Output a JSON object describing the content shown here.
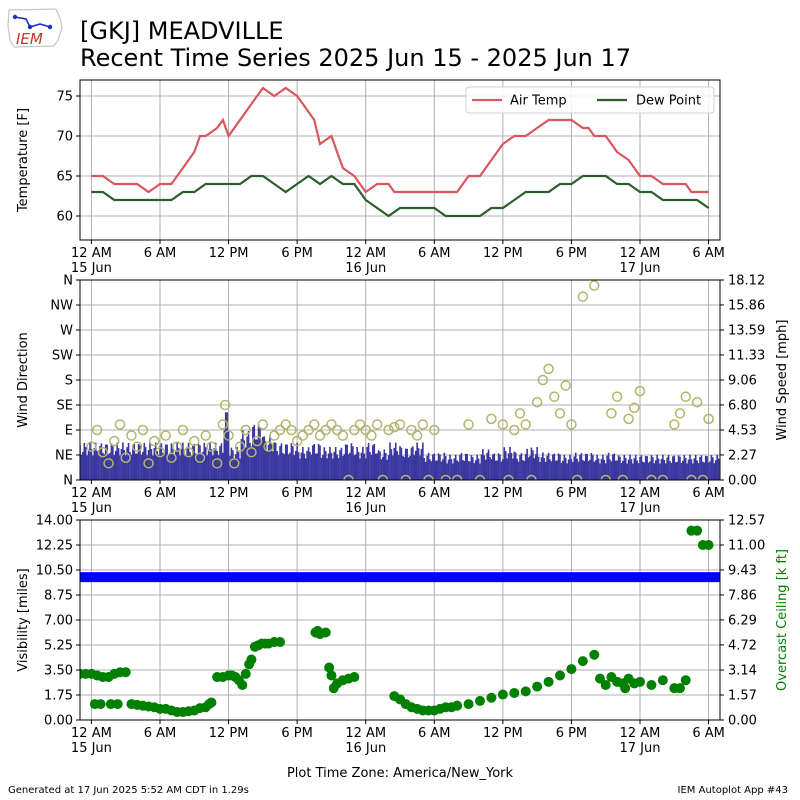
{
  "header": {
    "title_line1": "[GKJ] MEADVILLE",
    "title_line2": "Recent Time Series 2025 Jun 15 - 2025 Jun 17",
    "logo_text": "IEM"
  },
  "footer": {
    "generated": "Generated at 17 Jun 2025 5:52 AM CDT in 1.29s",
    "app": "IEM Autoplot App #43",
    "timezone_label": "Plot Time Zone: America/New_York"
  },
  "colors": {
    "air_temp": "#d9575e",
    "dew_point": "#2e5e2e",
    "wind_bar": "#3a37a0",
    "wind_dir_marker": "#b3b56a",
    "visibility": "#0000ff",
    "ceiling": "#008000",
    "grid": "#b0b0b0"
  },
  "x_axis": {
    "ticks": [
      {
        "hour": 0,
        "label": "12 AM",
        "sub": "15 Jun"
      },
      {
        "hour": 6,
        "label": "6 AM",
        "sub": ""
      },
      {
        "hour": 12,
        "label": "12 PM",
        "sub": ""
      },
      {
        "hour": 18,
        "label": "6 PM",
        "sub": ""
      },
      {
        "hour": 24,
        "label": "12 AM",
        "sub": "16 Jun"
      },
      {
        "hour": 30,
        "label": "6 AM",
        "sub": ""
      },
      {
        "hour": 36,
        "label": "12 PM",
        "sub": ""
      },
      {
        "hour": 42,
        "label": "6 PM",
        "sub": ""
      },
      {
        "hour": 48,
        "label": "12 AM",
        "sub": "17 Jun"
      },
      {
        "hour": 54,
        "label": "6 AM",
        "sub": ""
      }
    ],
    "range": [
      -1,
      55
    ]
  },
  "chart_data": [
    {
      "type": "line",
      "ylabel": "Temperature [F]",
      "ylim": [
        57,
        77
      ],
      "yticks": [
        60,
        65,
        70,
        75
      ],
      "grid": true,
      "legend": "top-right",
      "series": [
        {
          "name": "Air Temp",
          "x": [
            0,
            1,
            2,
            3,
            4,
            5,
            6,
            7,
            8,
            9,
            9.5,
            10,
            11,
            11.5,
            12,
            12.5,
            13,
            14,
            15,
            16,
            17,
            18,
            18.5,
            19,
            19.5,
            20,
            21,
            21.5,
            22,
            23,
            24,
            25,
            26,
            26.5,
            27,
            28,
            29,
            30,
            31,
            32,
            33,
            34,
            35,
            36,
            37,
            38,
            39,
            40,
            41,
            42,
            43,
            43.5,
            44,
            45,
            46,
            47,
            48,
            49,
            50,
            51,
            52,
            52.5,
            53,
            54
          ],
          "y": [
            65,
            65,
            64,
            64,
            64,
            63,
            64,
            64,
            66,
            68,
            70,
            70,
            71,
            72,
            70,
            71,
            72,
            74,
            76,
            75,
            76,
            75,
            74,
            73,
            72,
            69,
            70,
            68,
            66,
            65,
            63,
            64,
            64,
            63,
            63,
            63,
            63,
            63,
            63,
            63,
            65,
            65,
            67,
            69,
            70,
            70,
            71,
            72,
            72,
            72,
            71,
            71,
            70,
            70,
            68,
            67,
            65,
            65,
            64,
            64,
            64,
            63,
            63,
            63
          ]
        },
        {
          "name": "Dew Point",
          "x": [
            0,
            1,
            2,
            3,
            4,
            5,
            6,
            7,
            8,
            9,
            10,
            11,
            12,
            13,
            14,
            15,
            16,
            17,
            18,
            19,
            20,
            21,
            22,
            23,
            24,
            25,
            26,
            27,
            28,
            29,
            30,
            31,
            32,
            33,
            34,
            35,
            36,
            37,
            38,
            39,
            40,
            41,
            42,
            43,
            44,
            45,
            46,
            47,
            48,
            49,
            50,
            51,
            52,
            53,
            54
          ],
          "y": [
            63,
            63,
            62,
            62,
            62,
            62,
            62,
            62,
            63,
            63,
            64,
            64,
            64,
            64,
            65,
            65,
            64,
            63,
            64,
            65,
            64,
            65,
            64,
            64,
            62,
            61,
            60,
            61,
            61,
            61,
            61,
            60,
            60,
            60,
            60,
            61,
            61,
            62,
            63,
            63,
            63,
            64,
            64,
            65,
            65,
            65,
            64,
            64,
            63,
            63,
            62,
            62,
            62,
            62,
            61
          ]
        }
      ]
    },
    {
      "type": "bar",
      "ylabel": "Wind Direction",
      "y2label": "Wind Speed [mph]",
      "ylim": [
        0,
        360
      ],
      "yticks": [
        0,
        45,
        90,
        135,
        180,
        225,
        270,
        315,
        360
      ],
      "ytick_labels": [
        "N",
        "NE",
        "E",
        "SE",
        "S",
        "SW",
        "W",
        "NW",
        "N"
      ],
      "y2lim": [
        0,
        18.12
      ],
      "y2ticks": [
        0.0,
        2.27,
        4.53,
        6.8,
        9.06,
        11.33,
        13.59,
        15.86,
        18.12
      ],
      "y2tick_labels": [
        "0.00",
        "2.27",
        "4.53",
        "6.80",
        "9.06",
        "11.33",
        "13.59",
        "15.86",
        "18.12"
      ],
      "grid": true,
      "wind_speed_envelope": {
        "x": [
          0,
          1,
          2,
          3,
          4,
          5,
          6,
          7,
          8,
          9,
          10,
          11,
          11.5,
          12,
          13,
          14,
          15,
          16,
          17,
          18,
          19,
          20,
          21,
          22,
          23,
          24,
          25,
          26,
          27,
          28,
          29,
          30,
          31,
          32,
          33,
          34,
          35,
          36,
          37,
          38,
          39,
          40,
          41,
          42,
          43,
          44,
          45,
          46,
          47,
          48,
          49,
          50,
          51,
          52,
          53,
          54
        ],
        "y": [
          3.4,
          3.4,
          3.4,
          3.4,
          3.4,
          3.4,
          3.4,
          3.4,
          3.4,
          3.4,
          3.4,
          3.4,
          6.5,
          3.0,
          4.5,
          5.2,
          4.0,
          3.4,
          3.4,
          3.0,
          3.4,
          3.0,
          3.0,
          3.4,
          3.0,
          3.4,
          2.8,
          3.4,
          3.0,
          3.4,
          2.5,
          2.5,
          2.3,
          2.5,
          2.3,
          2.8,
          2.5,
          3.0,
          2.5,
          3.0,
          2.5,
          2.5,
          2.3,
          2.5,
          2.5,
          2.3,
          2.5,
          2.3,
          2.3,
          2.3,
          2.3,
          2.3,
          2.3,
          2.3,
          2.3,
          2.3
        ]
      },
      "wind_direction": {
        "x": [
          0,
          0.5,
          1,
          1.5,
          2,
          2.5,
          3,
          3.5,
          4,
          4.5,
          5,
          5.5,
          6,
          6.5,
          7,
          7.5,
          8,
          8.5,
          9,
          9.5,
          10,
          10.5,
          11,
          11.5,
          11.7,
          12,
          12.5,
          13,
          13.5,
          14,
          14.5,
          15,
          15.5,
          16,
          16.5,
          17,
          17.5,
          18,
          18.5,
          19,
          19.5,
          20,
          20.5,
          21,
          21.5,
          22,
          22.5,
          23,
          23.5,
          24,
          24.5,
          25,
          25.5,
          26,
          26.5,
          27,
          27.5,
          28,
          28.5,
          29,
          29.5,
          30,
          31,
          32,
          33,
          34,
          35,
          36,
          36.5,
          37,
          37.5,
          38,
          38.5,
          39,
          39.5,
          40,
          40.5,
          41,
          41.5,
          42,
          42.5,
          43,
          44,
          45,
          45.5,
          46,
          46.5,
          47,
          47.5,
          48,
          49,
          50,
          51,
          51.5,
          52,
          52.5,
          53,
          53.5,
          54
        ],
        "y": [
          60,
          90,
          50,
          30,
          70,
          100,
          40,
          80,
          60,
          90,
          30,
          70,
          50,
          80,
          40,
          60,
          90,
          50,
          70,
          40,
          80,
          60,
          30,
          100,
          135,
          80,
          30,
          60,
          90,
          50,
          70,
          100,
          60,
          80,
          90,
          100,
          90,
          70,
          80,
          90,
          100,
          80,
          90,
          100,
          90,
          80,
          0,
          90,
          100,
          90,
          80,
          100,
          0,
          90,
          95,
          100,
          0,
          90,
          80,
          100,
          0,
          90,
          0,
          0,
          100,
          0,
          110,
          100,
          0,
          90,
          120,
          100,
          0,
          140,
          180,
          200,
          150,
          120,
          170,
          100,
          0,
          330,
          350,
          0,
          120,
          150,
          0,
          110,
          130,
          160,
          0,
          0,
          100,
          120,
          150,
          0,
          140,
          0,
          110
        ]
      }
    },
    {
      "type": "scatter",
      "ylabel": "Visibility [miles]",
      "y2label": "Overcast Ceiling [k ft]",
      "ylim": [
        0,
        14
      ],
      "yticks": [
        0.0,
        1.75,
        3.5,
        5.25,
        7.0,
        8.75,
        10.5,
        12.25,
        14.0
      ],
      "ytick_labels": [
        "0.00",
        "1.75",
        "3.50",
        "5.25",
        "7.00",
        "8.75",
        "10.50",
        "12.25",
        "14.00"
      ],
      "y2lim": [
        0,
        12.57
      ],
      "y2ticks": [
        0.0,
        1.57,
        3.14,
        4.72,
        6.29,
        7.86,
        9.43,
        11.0,
        12.57
      ],
      "y2tick_labels": [
        "0.00",
        "1.57",
        "3.14",
        "4.72",
        "6.29",
        "7.86",
        "9.43",
        "11.00",
        "12.57"
      ],
      "grid": true,
      "visibility": {
        "x_start": -1,
        "x_end": 55,
        "value": 10
      },
      "ceiling": {
        "x": [
          -1,
          -0.5,
          0,
          0.5,
          1,
          1.5,
          2,
          2.5,
          3,
          0.3,
          0.8,
          1.7,
          2.3,
          3.5,
          4,
          4.5,
          5,
          5.5,
          6,
          6.5,
          7,
          7.5,
          8,
          8.5,
          9,
          9.5,
          10,
          10.3,
          10.5,
          11,
          11.5,
          12,
          12.3,
          12.6,
          12.9,
          13.2,
          13.5,
          13.8,
          14,
          14.3,
          14.6,
          14.9,
          15.2,
          15.5,
          16,
          16.5,
          19.6,
          19.8,
          20,
          20.5,
          20.8,
          21,
          21.2,
          21.5,
          22,
          22.5,
          23,
          26.5,
          27,
          27.5,
          28,
          28.5,
          29,
          29.5,
          30,
          30.5,
          31,
          31.5,
          32,
          33,
          34,
          35,
          36,
          37,
          38,
          39,
          40,
          41,
          42,
          43,
          44,
          44.5,
          45,
          45.5,
          46,
          46.5,
          46.7,
          47,
          47.5,
          48,
          49,
          50,
          51,
          51.5,
          52,
          52.5,
          53,
          53.5,
          54
        ],
        "y": [
          2.9,
          2.9,
          2.9,
          2.8,
          2.7,
          2.7,
          2.9,
          3.0,
          3.0,
          1.0,
          1.0,
          1.0,
          1.0,
          1.0,
          0.95,
          0.9,
          0.85,
          0.8,
          0.7,
          0.7,
          0.6,
          0.5,
          0.5,
          0.55,
          0.6,
          0.75,
          0.8,
          1.0,
          1.1,
          2.7,
          2.7,
          2.8,
          2.8,
          2.7,
          2.5,
          2.2,
          2.9,
          3.5,
          3.8,
          4.6,
          4.7,
          4.8,
          4.8,
          4.8,
          4.9,
          4.9,
          5.5,
          5.6,
          5.4,
          5.5,
          3.3,
          2.8,
          2.0,
          2.3,
          2.5,
          2.6,
          2.7,
          1.5,
          1.3,
          1.0,
          0.8,
          0.7,
          0.6,
          0.6,
          0.6,
          0.7,
          0.8,
          0.8,
          0.9,
          1.0,
          1.2,
          1.4,
          1.6,
          1.7,
          1.8,
          2.1,
          2.4,
          2.8,
          3.2,
          3.7,
          4.1,
          2.6,
          2.2,
          2.7,
          2.4,
          2.3,
          2.0,
          2.6,
          2.3,
          2.4,
          2.2,
          2.5,
          2.0,
          2.0,
          2.5,
          11.9,
          11.9,
          11.0,
          11.0
        ]
      }
    }
  ]
}
